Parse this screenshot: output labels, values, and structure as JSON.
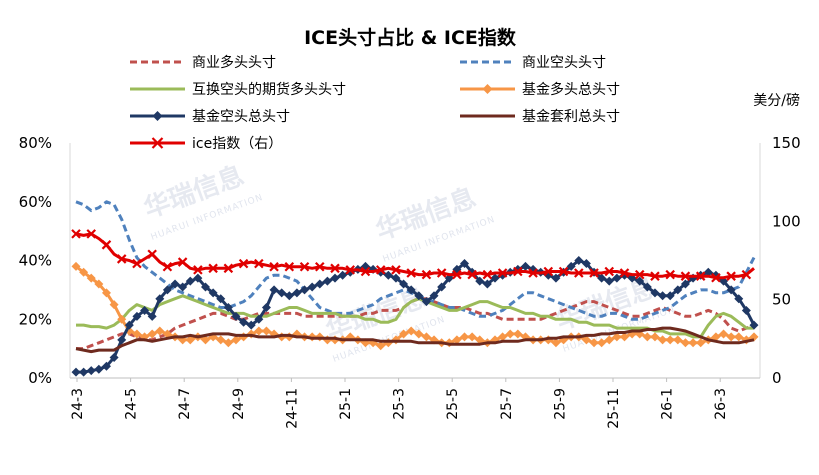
{
  "chart_data": {
    "type": "line",
    "title": "ICE头寸占比 & ICE指数",
    "right_axis_unit": "美分/磅",
    "watermark": {
      "cn": "华瑞信息",
      "en": "HUARUI INFORMATION"
    },
    "x_tick_labels": [
      "24-3",
      "24-5",
      "24-7",
      "24-9",
      "24-11",
      "25-1",
      "25-3",
      "25-5",
      "25-7",
      "25-9",
      "25-11",
      "26-1",
      "26-3"
    ],
    "y_left": {
      "ticks": [
        "0%",
        "20%",
        "40%",
        "60%",
        "80%"
      ],
      "ylim": [
        0,
        80
      ]
    },
    "y_right": {
      "ticks": [
        "0",
        "50",
        "100",
        "150"
      ],
      "ylim": [
        0,
        150
      ]
    },
    "legend": [
      "商业多头头寸",
      "商业空头头寸",
      "互换空头的期货多头头寸",
      "基金多头总头寸",
      "基金空头总头寸",
      "基金套利总头寸",
      "ice指数（右）"
    ],
    "series": [
      {
        "name": "商业多头头寸",
        "axis": "left",
        "color": "#c0504d",
        "style": "dashed",
        "values": [
          10,
          10,
          11,
          12,
          13,
          14,
          15,
          15,
          14,
          13,
          13,
          14,
          15,
          17,
          18,
          19,
          20,
          21,
          22,
          22,
          21,
          20,
          20,
          21,
          22,
          22,
          22,
          22,
          22,
          22,
          21,
          21,
          21,
          21,
          21,
          21,
          21,
          21,
          22,
          22,
          23,
          23,
          23,
          24,
          26,
          27,
          27,
          26,
          25,
          24,
          24,
          24,
          23,
          22,
          22,
          21,
          20,
          20,
          20,
          20,
          20,
          20,
          21,
          22,
          23,
          24,
          25,
          26,
          26,
          25,
          24,
          23,
          22,
          21,
          21,
          22,
          23,
          24,
          23,
          22,
          21,
          21,
          22,
          23,
          22,
          20,
          17,
          16,
          17,
          18
        ]
      },
      {
        "name": "商业空头头寸",
        "axis": "left",
        "color": "#4f81bd",
        "style": "dashed",
        "values": [
          60,
          59,
          57,
          58,
          60,
          59,
          54,
          47,
          41,
          38,
          36,
          34,
          32,
          30,
          29,
          28,
          27,
          26,
          25,
          24,
          24,
          25,
          26,
          28,
          31,
          34,
          35,
          35,
          34,
          33,
          30,
          27,
          24,
          23,
          22,
          22,
          22,
          23,
          24,
          25,
          27,
          28,
          29,
          30,
          29,
          28,
          27,
          26,
          25,
          24,
          24,
          23,
          22,
          21,
          21,
          22,
          23,
          25,
          27,
          29,
          29,
          28,
          27,
          26,
          25,
          24,
          23,
          22,
          21,
          21,
          22,
          22,
          21,
          20,
          20,
          21,
          22,
          23,
          24,
          26,
          28,
          29,
          30,
          30,
          29,
          29,
          30,
          31,
          36,
          41
        ]
      },
      {
        "name": "互换空头的期货多头头寸",
        "axis": "left",
        "color": "#9bbb59",
        "style": "solid",
        "values": [
          18,
          18,
          17.5,
          17.5,
          17,
          18,
          20,
          23,
          25,
          24,
          23,
          25,
          26,
          27,
          28,
          27,
          26,
          25,
          24,
          23,
          22,
          22,
          22,
          21,
          21,
          21,
          22,
          23,
          24,
          24,
          23,
          22,
          22,
          22,
          22,
          21,
          21,
          21,
          20,
          20,
          19,
          19,
          20,
          24,
          26,
          27,
          26,
          25,
          24,
          23,
          23,
          24,
          25,
          26,
          26,
          25,
          24,
          24,
          23,
          22,
          22,
          21,
          21,
          20,
          20,
          20,
          19,
          19,
          18,
          18,
          18,
          17,
          17,
          17,
          17,
          17,
          16,
          16,
          15,
          15,
          15,
          14,
          14,
          18,
          21,
          22,
          21,
          19,
          17,
          17
        ]
      },
      {
        "name": "基金多头总头寸",
        "axis": "left",
        "color": "#f79646",
        "style": "solid",
        "marker": "diamond",
        "values": [
          38,
          36,
          34,
          32,
          29,
          25,
          20,
          16,
          15,
          14,
          15,
          16,
          15,
          14,
          13,
          13,
          14,
          13,
          14,
          13,
          12,
          13,
          14,
          15,
          16,
          16,
          15,
          14,
          14,
          15,
          14,
          14,
          14,
          13,
          13,
          13,
          14,
          13,
          12,
          12,
          11,
          12,
          13,
          15,
          16,
          15,
          14,
          13,
          12,
          12,
          13,
          14,
          14,
          13,
          12,
          13,
          14,
          15,
          15,
          14,
          13,
          13,
          13,
          12,
          13,
          14,
          14,
          13,
          12,
          12,
          13,
          14,
          14,
          15,
          15,
          14,
          14,
          13,
          13,
          13,
          12,
          12,
          12,
          13,
          14,
          15,
          14,
          14,
          13,
          14
        ]
      },
      {
        "name": "基金空头总头寸",
        "axis": "left",
        "color": "#1f3864",
        "style": "solid",
        "marker": "diamond",
        "values": [
          2,
          2,
          2.5,
          3,
          4,
          7,
          13,
          18,
          21,
          23,
          21,
          27,
          30,
          32,
          31,
          33,
          34,
          31,
          29,
          27,
          24,
          21,
          19,
          18,
          20,
          24,
          30,
          29,
          28,
          29,
          30,
          31,
          32,
          33,
          34,
          35,
          36,
          37,
          38,
          37,
          36,
          35,
          34,
          32,
          30,
          28,
          26,
          28,
          31,
          34,
          37,
          39,
          36,
          33,
          32,
          34,
          35,
          36,
          37,
          38,
          37,
          36,
          35,
          34,
          36,
          38,
          40,
          39,
          36,
          34,
          33,
          34,
          35,
          34,
          33,
          31,
          29,
          28,
          28,
          30,
          32,
          34,
          35,
          36,
          35,
          33,
          30,
          27,
          23,
          18
        ]
      },
      {
        "name": "基金套利总头寸",
        "axis": "left",
        "color": "#6e2a1e",
        "style": "solid",
        "values": [
          10,
          9.5,
          9,
          9.5,
          9.5,
          9.5,
          11,
          12,
          13,
          13,
          12.5,
          13,
          13.5,
          14,
          14,
          14.5,
          14,
          14.5,
          15,
          15,
          15,
          14.5,
          14.5,
          14.5,
          14,
          14,
          14,
          14.5,
          14.5,
          14,
          14,
          13.5,
          13.5,
          13.5,
          13.5,
          13,
          13,
          13,
          13,
          13,
          12.5,
          12.5,
          12.5,
          12.5,
          12.5,
          12,
          12,
          12,
          12,
          11.5,
          11.5,
          11.5,
          11.5,
          11.5,
          12,
          12,
          12.5,
          12.5,
          12.5,
          13,
          13,
          13,
          13.5,
          13.5,
          14,
          14,
          14,
          14.5,
          14.5,
          15,
          15,
          15.5,
          15.5,
          16,
          16,
          16.5,
          16.5,
          17,
          17,
          16.5,
          16,
          15,
          14,
          13,
          12.5,
          12,
          12,
          12,
          12.5,
          13
        ]
      },
      {
        "name": "ice指数（右）",
        "axis": "right",
        "color": "#e00000",
        "style": "solid",
        "marker": "x",
        "values": [
          92,
          91,
          92,
          89,
          85,
          79,
          76,
          75,
          73,
          76,
          79,
          74,
          71,
          73,
          74,
          70,
          69,
          70,
          70,
          70,
          70,
          72,
          73,
          74,
          73,
          72,
          71,
          72,
          71,
          71,
          71,
          70,
          71,
          70,
          70,
          70,
          69,
          69,
          68,
          68,
          69,
          70,
          69,
          68,
          67,
          66,
          66,
          67,
          67,
          66,
          66,
          67,
          66,
          67,
          66,
          67,
          67,
          67,
          68,
          68,
          67,
          67,
          68,
          68,
          68,
          67,
          67,
          67,
          67,
          67,
          68,
          68,
          67,
          66,
          66,
          66,
          65,
          65,
          66,
          65,
          65,
          65,
          65,
          65,
          64,
          64,
          65,
          65,
          66,
          70
        ]
      }
    ]
  }
}
